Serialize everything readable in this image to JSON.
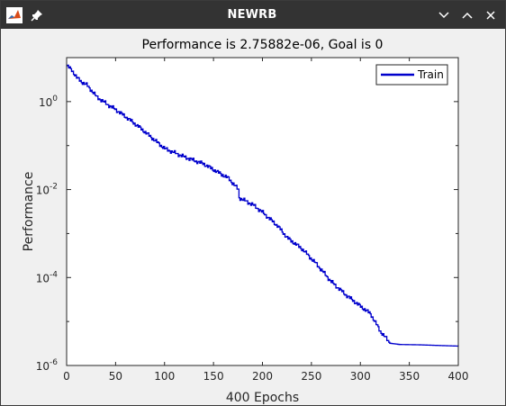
{
  "window": {
    "title": "NEWRB",
    "icons": {
      "app": "matlab-logo-icon",
      "pin": "pin-icon",
      "minimize": "chevron-down-icon",
      "maximize": "chevron-up-icon",
      "close": "close-icon"
    },
    "colors": {
      "titlebar": "#333333",
      "background": "#f0f0f0",
      "plot_bg": "#ffffff",
      "series": "#0000cc"
    }
  },
  "chart_data": {
    "type": "line",
    "title": "Performance is 2.75882e-06, Goal is 0",
    "xlabel": "400 Epochs",
    "ylabel": "Performance",
    "yscale": "log",
    "xlim": [
      0,
      400
    ],
    "ylim": [
      1e-06,
      10
    ],
    "x_ticks": [
      "0",
      "50",
      "100",
      "150",
      "200",
      "250",
      "300",
      "350",
      "400"
    ],
    "y_ticks": [
      {
        "base": "10",
        "exp": "0",
        "value": 1
      },
      {
        "base": "10",
        "exp": "-2",
        "value": 0.01
      },
      {
        "base": "10",
        "exp": "-4",
        "value": 0.0001
      },
      {
        "base": "10",
        "exp": "-6",
        "value": 1e-06
      }
    ],
    "legend": {
      "placement": "top-right",
      "entries": [
        "Train"
      ]
    },
    "grid": false,
    "series": [
      {
        "name": "Train",
        "color": "#0000cc",
        "points": [
          [
            0,
            6.5
          ],
          [
            5,
            5.2
          ],
          [
            10,
            3.5
          ],
          [
            15,
            2.8
          ],
          [
            20,
            2.4
          ],
          [
            25,
            1.8
          ],
          [
            30,
            1.3
          ],
          [
            40,
            0.9
          ],
          [
            50,
            0.65
          ],
          [
            60,
            0.45
          ],
          [
            75,
            0.25
          ],
          [
            90,
            0.13
          ],
          [
            100,
            0.085
          ],
          [
            120,
            0.055
          ],
          [
            140,
            0.038
          ],
          [
            150,
            0.028
          ],
          [
            165,
            0.018
          ],
          [
            175,
            0.01
          ],
          [
            176,
            0.0065
          ],
          [
            190,
            0.0045
          ],
          [
            200,
            0.003
          ],
          [
            215,
            0.0015
          ],
          [
            225,
            0.0008
          ],
          [
            240,
            0.00045
          ],
          [
            255,
            0.0002
          ],
          [
            270,
            8e-05
          ],
          [
            285,
            4e-05
          ],
          [
            300,
            2.2e-05
          ],
          [
            310,
            1.5e-05
          ],
          [
            320,
            6e-06
          ],
          [
            330,
            3.2e-06
          ],
          [
            340,
            3e-06
          ],
          [
            360,
            2.95e-06
          ],
          [
            380,
            2.85e-06
          ],
          [
            400,
            2.75882e-06
          ]
        ]
      }
    ]
  }
}
